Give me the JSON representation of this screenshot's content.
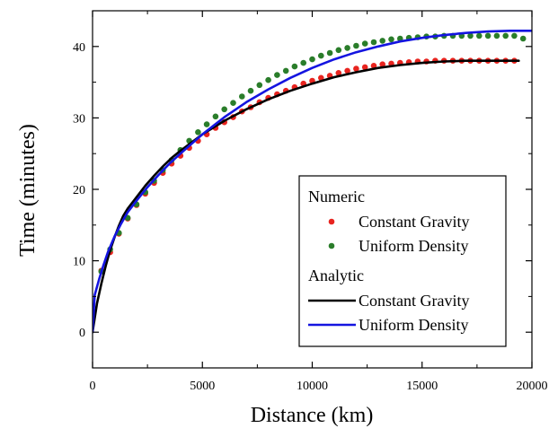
{
  "chart_data": {
    "type": "scatter",
    "xlabel": "Distance (km)",
    "ylabel": "Time (minutes)",
    "xlim": [
      0,
      20000
    ],
    "ylim": [
      -5,
      45
    ],
    "xticks": [
      0,
      5000,
      10000,
      15000,
      20000
    ],
    "xtick_labels": [
      "0",
      "5000",
      "10000",
      "15000",
      "20000"
    ],
    "yticks": [
      0,
      10,
      20,
      30,
      40
    ],
    "ytick_labels": [
      "0",
      "10",
      "20",
      "30",
      "40"
    ],
    "grid": false,
    "legend_placement": "bottom-right",
    "legend": {
      "numeric_header": "Numeric",
      "analytic_header": "Analytic"
    },
    "series": [
      {
        "name": "Constant Gravity",
        "group": "Numeric",
        "style": "dots",
        "color": "#e8241f",
        "x": [
          400,
          800,
          1200,
          1600,
          2000,
          2400,
          2800,
          3200,
          3600,
          4000,
          4400,
          4800,
          5200,
          5600,
          6000,
          6400,
          6800,
          7200,
          7600,
          8000,
          8400,
          8800,
          9200,
          9600,
          10000,
          10400,
          10800,
          11200,
          11600,
          12000,
          12400,
          12800,
          13200,
          13600,
          14000,
          14400,
          14800,
          15200,
          15600,
          16000,
          16400,
          16800,
          17200,
          17600,
          18000,
          18400,
          18800,
          19200
        ],
        "y": [
          8.6,
          11.2,
          13.8,
          15.9,
          17.8,
          19.4,
          20.9,
          22.3,
          23.6,
          24.7,
          25.8,
          26.8,
          27.7,
          28.6,
          29.4,
          30.1,
          30.9,
          31.5,
          32.2,
          32.8,
          33.3,
          33.8,
          34.3,
          34.8,
          35.2,
          35.6,
          35.9,
          36.3,
          36.6,
          36.9,
          37.1,
          37.3,
          37.5,
          37.6,
          37.7,
          37.8,
          37.9,
          37.9,
          38.0,
          38.0,
          38.0,
          38.0,
          38.0,
          38.0,
          38.0,
          38.0,
          38.0,
          38.0
        ]
      },
      {
        "name": "Uniform Density",
        "group": "Numeric",
        "style": "dots",
        "color": "#2a7d2a",
        "x": [
          400,
          800,
          1200,
          1600,
          2000,
          2400,
          2800,
          3200,
          3600,
          4000,
          4400,
          4800,
          5200,
          5600,
          6000,
          6400,
          6800,
          7200,
          7600,
          8000,
          8400,
          8800,
          9200,
          9600,
          10000,
          10400,
          10800,
          11200,
          11600,
          12000,
          12400,
          12800,
          13200,
          13600,
          14000,
          14400,
          14800,
          15200,
          15600,
          16000,
          16400,
          16800,
          17200,
          17600,
          18000,
          18400,
          18800,
          19200,
          19600
        ],
        "y": [
          8.5,
          11.6,
          13.9,
          16.0,
          17.9,
          19.6,
          21.2,
          22.7,
          24.1,
          25.5,
          26.8,
          28.0,
          29.1,
          30.2,
          31.2,
          32.1,
          33.0,
          33.8,
          34.6,
          35.3,
          36.0,
          36.6,
          37.2,
          37.7,
          38.2,
          38.7,
          39.1,
          39.5,
          39.8,
          40.1,
          40.4,
          40.6,
          40.8,
          41.0,
          41.1,
          41.2,
          41.3,
          41.4,
          41.4,
          41.5,
          41.5,
          41.5,
          41.5,
          41.5,
          41.5,
          41.5,
          41.5,
          41.5,
          41.1
        ]
      },
      {
        "name": "Constant Gravity",
        "group": "Analytic",
        "style": "line",
        "color": "#000000",
        "x": [
          0,
          200,
          400,
          600,
          800,
          1000,
          1200,
          1400,
          1600,
          2000,
          2400,
          2800,
          3200,
          3600,
          4000,
          5000,
          6000,
          7000,
          8000,
          9000,
          10000,
          11000,
          12000,
          13000,
          14000,
          15000,
          16000,
          17000,
          18000,
          19000,
          19400
        ],
        "y": [
          0,
          4.0,
          6.8,
          9.3,
          11.5,
          13.3,
          14.9,
          16.3,
          17.3,
          18.9,
          20.5,
          21.9,
          23.2,
          24.4,
          25.4,
          27.7,
          29.6,
          31.2,
          32.6,
          33.8,
          34.8,
          35.7,
          36.4,
          37.0,
          37.4,
          37.7,
          37.9,
          38.0,
          38.0,
          38.0,
          38.0
        ]
      },
      {
        "name": "Uniform Density",
        "group": "Analytic",
        "style": "line",
        "color": "#1414e0",
        "x": [
          0,
          100,
          300,
          500,
          700,
          1000,
          1300,
          1600,
          2000,
          2500,
          3000,
          3500,
          4000,
          5000,
          6000,
          7000,
          8000,
          9000,
          10000,
          11000,
          12000,
          13000,
          14000,
          15000,
          16000,
          17000,
          18000,
          19000,
          20000
        ],
        "y": [
          0,
          5.2,
          7.4,
          9.4,
          11.2,
          13.4,
          15.2,
          16.8,
          18.4,
          20.3,
          22.0,
          23.6,
          25.0,
          27.7,
          30.1,
          32.2,
          34.0,
          35.6,
          37.0,
          38.2,
          39.2,
          40.0,
          40.7,
          41.2,
          41.6,
          41.9,
          42.1,
          42.2,
          42.2
        ]
      }
    ]
  }
}
